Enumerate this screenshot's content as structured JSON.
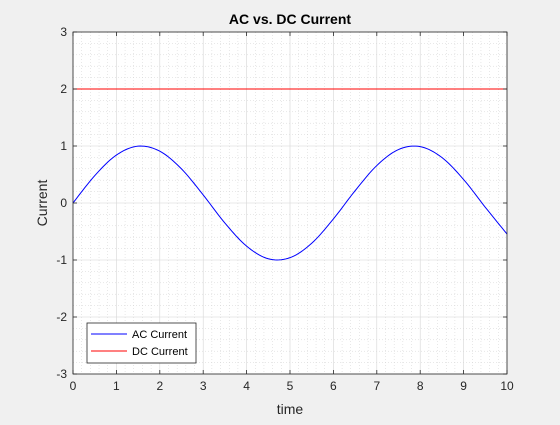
{
  "chart_data": {
    "type": "line",
    "title": "AC vs. DC Current",
    "xlabel": "time",
    "ylabel": "Current",
    "xlim": [
      0,
      10
    ],
    "ylim": [
      -3,
      3
    ],
    "xticks": [
      "0",
      "1",
      "2",
      "3",
      "4",
      "5",
      "6",
      "7",
      "8",
      "9",
      "10"
    ],
    "yticks": [
      "-3",
      "-2",
      "-1",
      "0",
      "1",
      "2",
      "3"
    ],
    "grid": "on, with minor grid",
    "legend_location": "bottom-left",
    "series": [
      {
        "name": "AC Current",
        "color": "#0000ff",
        "x": [
          0,
          0.5,
          1,
          1.5,
          2,
          2.5,
          3,
          3.5,
          4,
          4.5,
          5,
          5.5,
          6,
          6.5,
          7,
          7.5,
          8,
          8.5,
          9,
          9.5,
          10
        ],
        "y": [
          0,
          0.479,
          0.841,
          0.997,
          0.909,
          0.598,
          0.141,
          -0.351,
          -0.757,
          -0.978,
          -0.959,
          -0.706,
          -0.279,
          0.215,
          0.657,
          0.938,
          0.989,
          0.798,
          0.412,
          -0.075,
          -0.544
        ]
      },
      {
        "name": "DC Current",
        "color": "#ff0000",
        "x": [
          0,
          10
        ],
        "y": [
          2,
          2
        ]
      }
    ]
  }
}
